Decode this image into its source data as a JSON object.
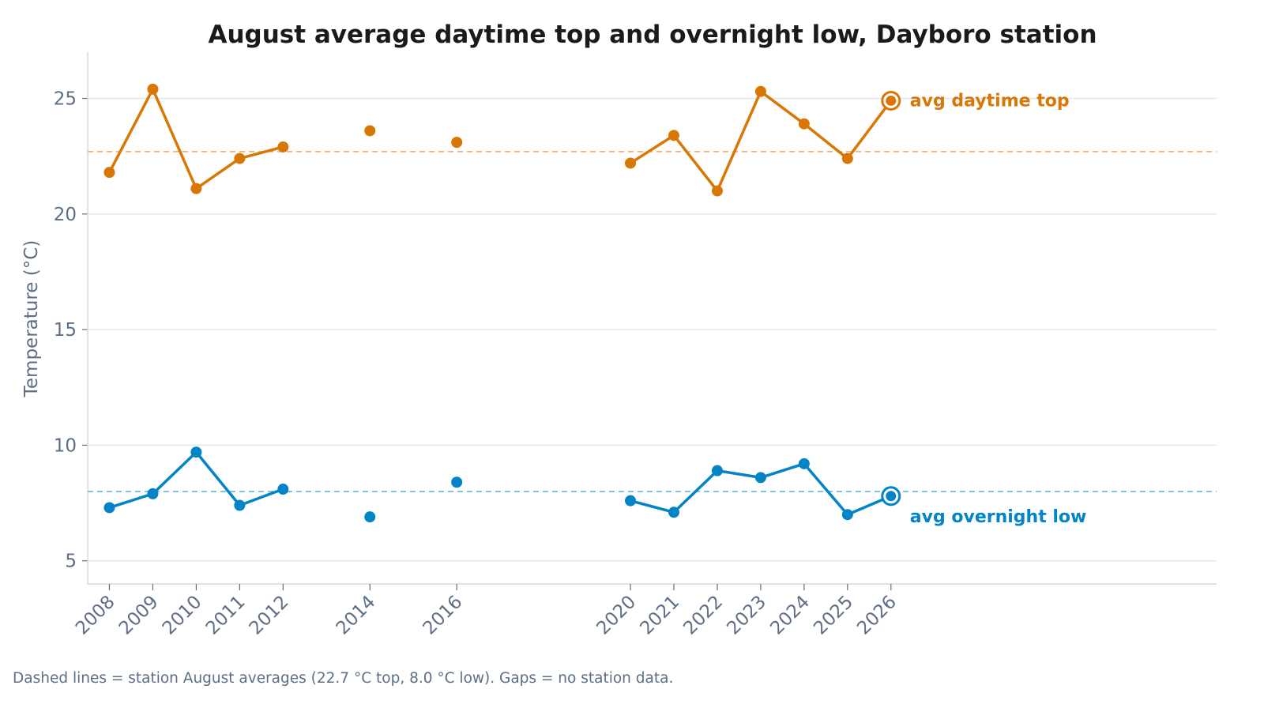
{
  "chart_data": {
    "type": "line",
    "title": "August average daytime top and overnight low, Dayboro station",
    "xlabel": "",
    "ylabel": "Temperature (°C)",
    "x": [
      2008,
      2009,
      2010,
      2011,
      2012,
      2014,
      2016,
      2020,
      2021,
      2022,
      2023,
      2024,
      2025,
      2026
    ],
    "x_ticks": [
      "2008",
      "2009",
      "2010",
      "2011",
      "2012",
      "2014",
      "2016",
      "2020",
      "2021",
      "2022",
      "2023",
      "2024",
      "2025",
      "2026"
    ],
    "xlim": [
      2007.5,
      2033.5
    ],
    "ylim": [
      4,
      27
    ],
    "y_ticks": [
      5,
      10,
      15,
      20,
      25
    ],
    "grid": "horizontal",
    "series": [
      {
        "name": "avg daytime top",
        "color": "#d97706",
        "values": [
          21.8,
          25.4,
          21.1,
          22.4,
          22.9,
          23.6,
          23.1,
          22.2,
          23.4,
          21.0,
          25.3,
          23.9,
          22.4,
          24.9
        ],
        "reference_value": 22.7,
        "reference_color": "#f4a460"
      },
      {
        "name": "avg overnight low",
        "color": "#0284c7",
        "values": [
          7.3,
          7.9,
          9.7,
          7.4,
          8.1,
          6.9,
          8.4,
          7.6,
          7.1,
          8.9,
          8.6,
          9.2,
          7.0,
          7.8
        ],
        "reference_value": 8.0,
        "reference_color": "#5dade2"
      }
    ],
    "highlight_last_point": true,
    "annotation": "Dashed lines = station August averages (22.7 °C top, 8.0 °C low). Gaps = no station data."
  }
}
